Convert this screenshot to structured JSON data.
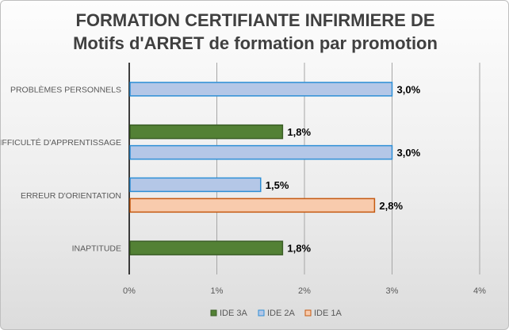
{
  "chart_data": {
    "type": "bar",
    "orientation": "horizontal",
    "title_lines": [
      "FORMATION CERTIFIANTE INFIRMIERE DE",
      "Motifs d'ARRET de formation par promotion"
    ],
    "categories": [
      "PROBLÈMES PERSONNELS",
      "DIFFICULTÉ D'APPRENTISSAGE",
      "ERREUR D'ORIENTATION",
      "INAPTITUDE"
    ],
    "series": [
      {
        "name": "IDE 3A",
        "color": "#538135",
        "border": "#3b5e26",
        "values": [
          null,
          1.75,
          null,
          1.75
        ],
        "labels": [
          "",
          "1,8%",
          "",
          "1,8%"
        ]
      },
      {
        "name": "IDE 2A",
        "color": "#b4c7e7",
        "border": "#2e8fd6",
        "values": [
          3.0,
          3.0,
          1.5,
          null
        ],
        "labels": [
          "3,0%",
          "3,0%",
          "1,5%",
          ""
        ]
      },
      {
        "name": "IDE 1A",
        "color": "#f8cbad",
        "border": "#c55a11",
        "values": [
          null,
          null,
          2.8,
          null
        ],
        "labels": [
          "",
          "",
          "2,8%",
          ""
        ]
      }
    ],
    "xlim": [
      0,
      4
    ],
    "xticks": [
      "0%",
      "1%",
      "2%",
      "3%",
      "4%"
    ],
    "grid": true,
    "legend_position": "bottom"
  }
}
